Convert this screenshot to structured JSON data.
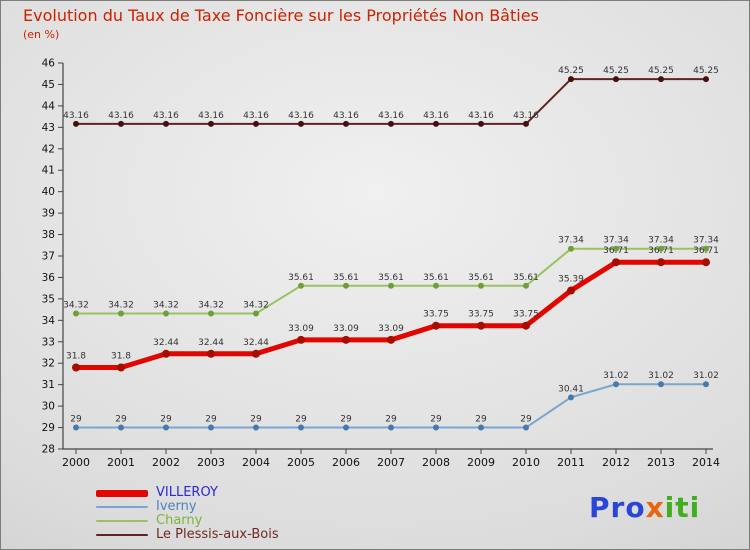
{
  "title": "Evolution du Taux de Taxe Foncière sur les Propriétés Non Bâties",
  "subtitle": "(en %)",
  "chart_data": {
    "type": "line",
    "x": [
      "2000",
      "2001",
      "2002",
      "2003",
      "2004",
      "2005",
      "2006",
      "2007",
      "2008",
      "2009",
      "2010",
      "2011",
      "2012",
      "2013",
      "2014"
    ],
    "ylim": [
      28,
      46
    ],
    "ytick_step": 1,
    "grid": false,
    "legend_position": "bottom-left",
    "point_label_color": "#333333",
    "axis_color": "#444444",
    "tick_label_color": "#111111",
    "series": [
      {
        "name": "VILLEROY",
        "color": "#e10600",
        "marker_color": "#a50d00",
        "line_width": 5,
        "marker_radius": 4,
        "values": [
          31.8,
          31.8,
          32.44,
          32.44,
          32.44,
          33.09,
          33.09,
          33.09,
          33.75,
          33.75,
          33.75,
          35.39,
          36.71,
          36.71,
          36.71
        ]
      },
      {
        "name": "Iverny",
        "color": "#7aa6cd",
        "marker_color": "#4879a8",
        "line_width": 2,
        "marker_radius": 3,
        "values": [
          29,
          29,
          29,
          29,
          29,
          29,
          29,
          29,
          29,
          29,
          29,
          30.41,
          31.02,
          31.02,
          31.02
        ]
      },
      {
        "name": "Charny",
        "color": "#97c45f",
        "marker_color": "#6f9e3a",
        "line_width": 2,
        "marker_radius": 3,
        "values": [
          34.32,
          34.32,
          34.32,
          34.32,
          34.32,
          35.61,
          35.61,
          35.61,
          35.61,
          35.61,
          35.61,
          37.34,
          37.34,
          37.34,
          37.34
        ]
      },
      {
        "name": "Le Plessis-aux-Bois",
        "color": "#5d2423",
        "marker_color": "#43100f",
        "line_width": 2,
        "marker_radius": 3,
        "values": [
          43.16,
          43.16,
          43.16,
          43.16,
          43.16,
          43.16,
          43.16,
          43.16,
          43.16,
          43.16,
          43.16,
          45.25,
          45.25,
          45.25,
          45.25
        ]
      }
    ]
  },
  "legend": {
    "items": [
      {
        "label": "VILLEROY",
        "swatch_color": "#e10600",
        "text_color": "#2a2ad0",
        "thick": true
      },
      {
        "label": "Iverny",
        "swatch_color": "#7aa6cd",
        "text_color": "#4d82c4",
        "thick": false
      },
      {
        "label": "Charny",
        "swatch_color": "#97c45f",
        "text_color": "#7db43a",
        "thick": false
      },
      {
        "label": "Le Plessis-aux-Bois",
        "swatch_color": "#5d2423",
        "text_color": "#6e2b24",
        "thick": false
      }
    ]
  },
  "logo": {
    "parts": [
      {
        "text": "Pro",
        "color": "#2b46d6"
      },
      {
        "text": "x",
        "color": "#e8650d"
      },
      {
        "text": "iti",
        "color": "#3fae1f"
      }
    ]
  }
}
